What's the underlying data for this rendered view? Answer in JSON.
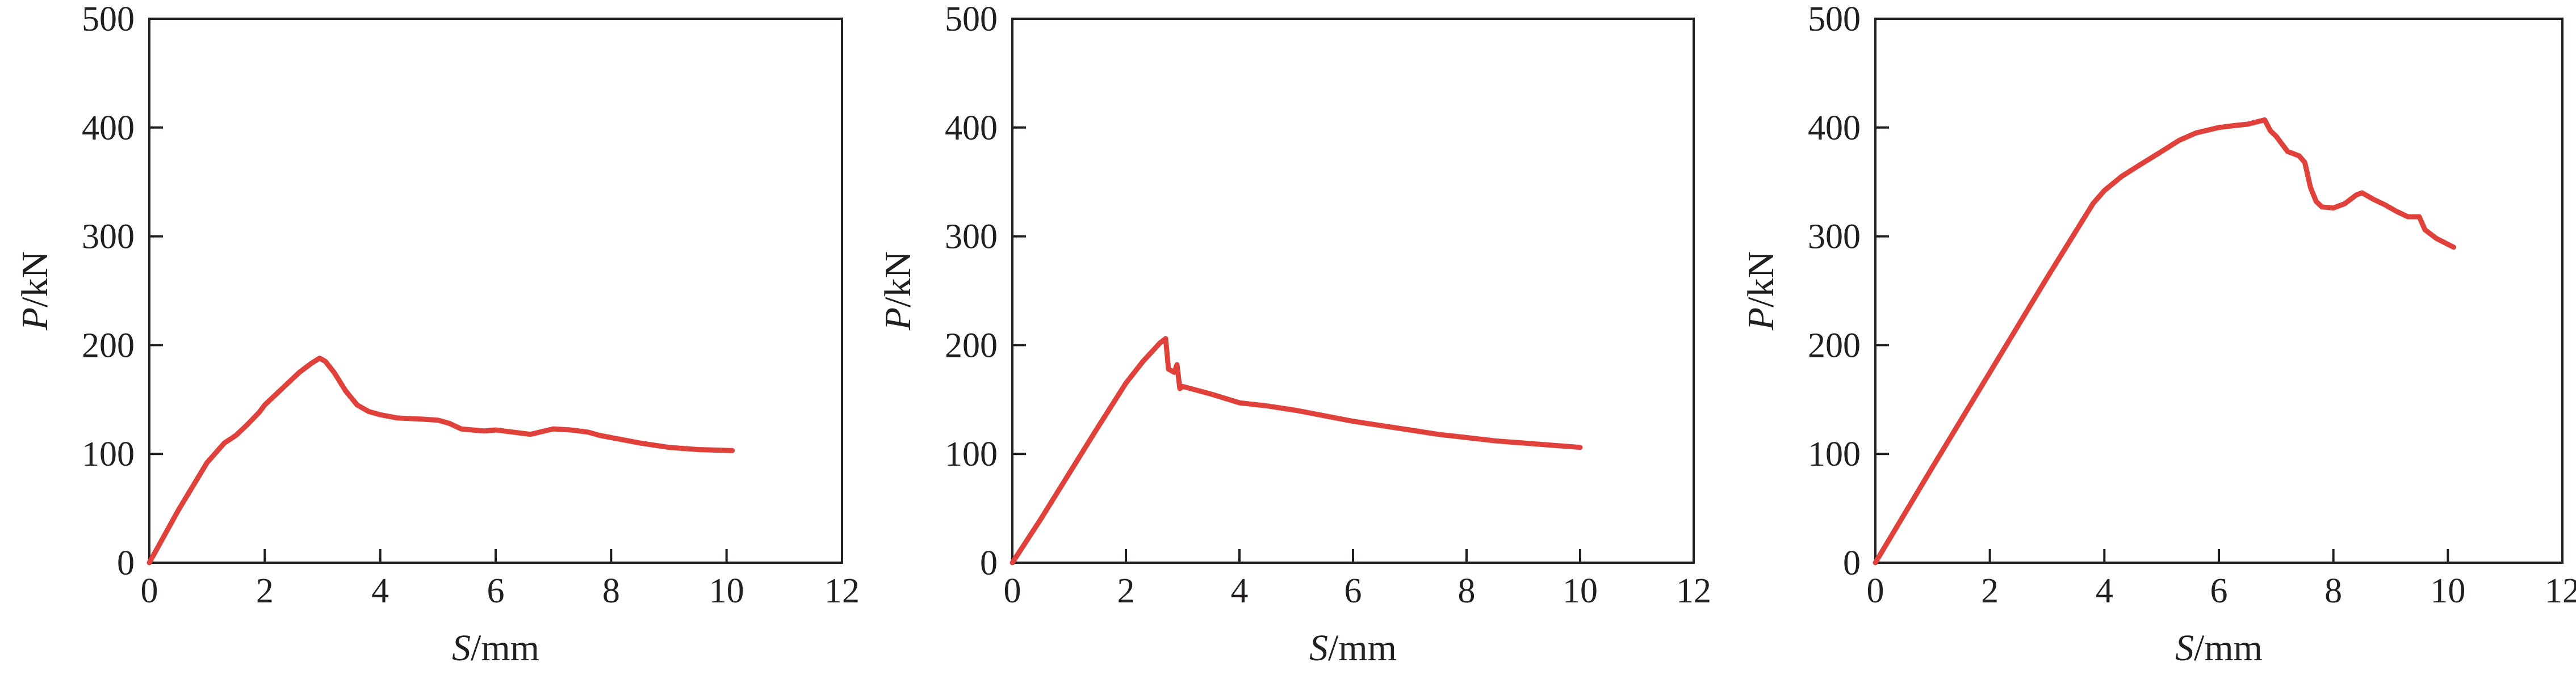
{
  "colors": {
    "series": "#e0413a",
    "axis": "#231f20"
  },
  "chart_data": [
    {
      "type": "line",
      "xlabel": {
        "var": "S",
        "unit": "/mm"
      },
      "ylabel": {
        "var": "P",
        "unit": "/kN"
      },
      "xlim": [
        0,
        12
      ],
      "ylim": [
        0,
        500
      ],
      "xticks": [
        "0",
        "2",
        "4",
        "6",
        "8",
        "10",
        "12"
      ],
      "yticks": [
        "0",
        "100",
        "200",
        "300",
        "400",
        "500"
      ],
      "grid": false,
      "series": [
        {
          "x": [
            0,
            0.5,
            1.0,
            1.3,
            1.5,
            1.7,
            1.9,
            2.0,
            2.2,
            2.4,
            2.6,
            2.8,
            2.95,
            3.05,
            3.2,
            3.4,
            3.6,
            3.8,
            4.0,
            4.3,
            4.7,
            5.0,
            5.2,
            5.4,
            5.6,
            5.8,
            6.0,
            6.3,
            6.6,
            7.0,
            7.3,
            7.6,
            7.8,
            8.0,
            8.5,
            9.0,
            9.5,
            10.1
          ],
          "y": [
            0,
            48,
            92,
            110,
            117,
            127,
            138,
            145,
            155,
            165,
            175,
            183,
            188,
            185,
            175,
            158,
            145,
            139,
            136,
            133,
            132,
            131,
            128,
            123,
            122,
            121,
            122,
            120,
            118,
            123,
            122,
            120,
            117,
            115,
            110,
            106,
            104,
            103
          ]
        }
      ]
    },
    {
      "type": "line",
      "xlabel": {
        "var": "S",
        "unit": "/mm"
      },
      "ylabel": {
        "var": "P",
        "unit": "/kN"
      },
      "xlim": [
        0,
        12
      ],
      "ylim": [
        0,
        500
      ],
      "xticks": [
        "0",
        "2",
        "4",
        "6",
        "8",
        "10",
        "12"
      ],
      "yticks": [
        "0",
        "100",
        "200",
        "300",
        "400",
        "500"
      ],
      "grid": false,
      "series": [
        {
          "x": [
            0,
            0.5,
            1.0,
            1.5,
            2.0,
            2.3,
            2.6,
            2.7,
            2.75,
            2.85,
            2.9,
            2.95,
            3.0,
            3.5,
            4.0,
            4.5,
            5.0,
            5.5,
            6.0,
            6.5,
            7.0,
            7.5,
            8.0,
            8.5,
            9.0,
            9.5,
            10.0
          ],
          "y": [
            0,
            40,
            82,
            124,
            165,
            185,
            202,
            206,
            178,
            175,
            182,
            160,
            162,
            155,
            147,
            144,
            140,
            135,
            130,
            126,
            122,
            118,
            115,
            112,
            110,
            108,
            106
          ]
        }
      ]
    },
    {
      "type": "line",
      "xlabel": {
        "var": "S",
        "unit": "/mm"
      },
      "ylabel": {
        "var": "P",
        "unit": "/kN"
      },
      "xlim": [
        0,
        12
      ],
      "ylim": [
        0,
        500
      ],
      "xticks": [
        "0",
        "2",
        "4",
        "6",
        "8",
        "10",
        "12"
      ],
      "yticks": [
        "0",
        "100",
        "200",
        "300",
        "400",
        "500"
      ],
      "grid": false,
      "series": [
        {
          "x": [
            0,
            1.0,
            2.0,
            3.0,
            3.8,
            4.0,
            4.3,
            4.6,
            5.0,
            5.3,
            5.6,
            6.0,
            6.3,
            6.5,
            6.8,
            6.9,
            7.0,
            7.2,
            7.4,
            7.5,
            7.6,
            7.7,
            7.8,
            8.0,
            8.2,
            8.4,
            8.5,
            8.7,
            8.9,
            9.1,
            9.3,
            9.5,
            9.6,
            9.8,
            10.1
          ],
          "y": [
            0,
            88,
            175,
            262,
            330,
            342,
            355,
            365,
            378,
            388,
            395,
            400,
            402,
            403,
            407,
            397,
            392,
            378,
            374,
            368,
            345,
            332,
            327,
            326,
            330,
            338,
            340,
            334,
            329,
            323,
            318,
            318,
            306,
            298,
            290
          ]
        }
      ]
    }
  ]
}
